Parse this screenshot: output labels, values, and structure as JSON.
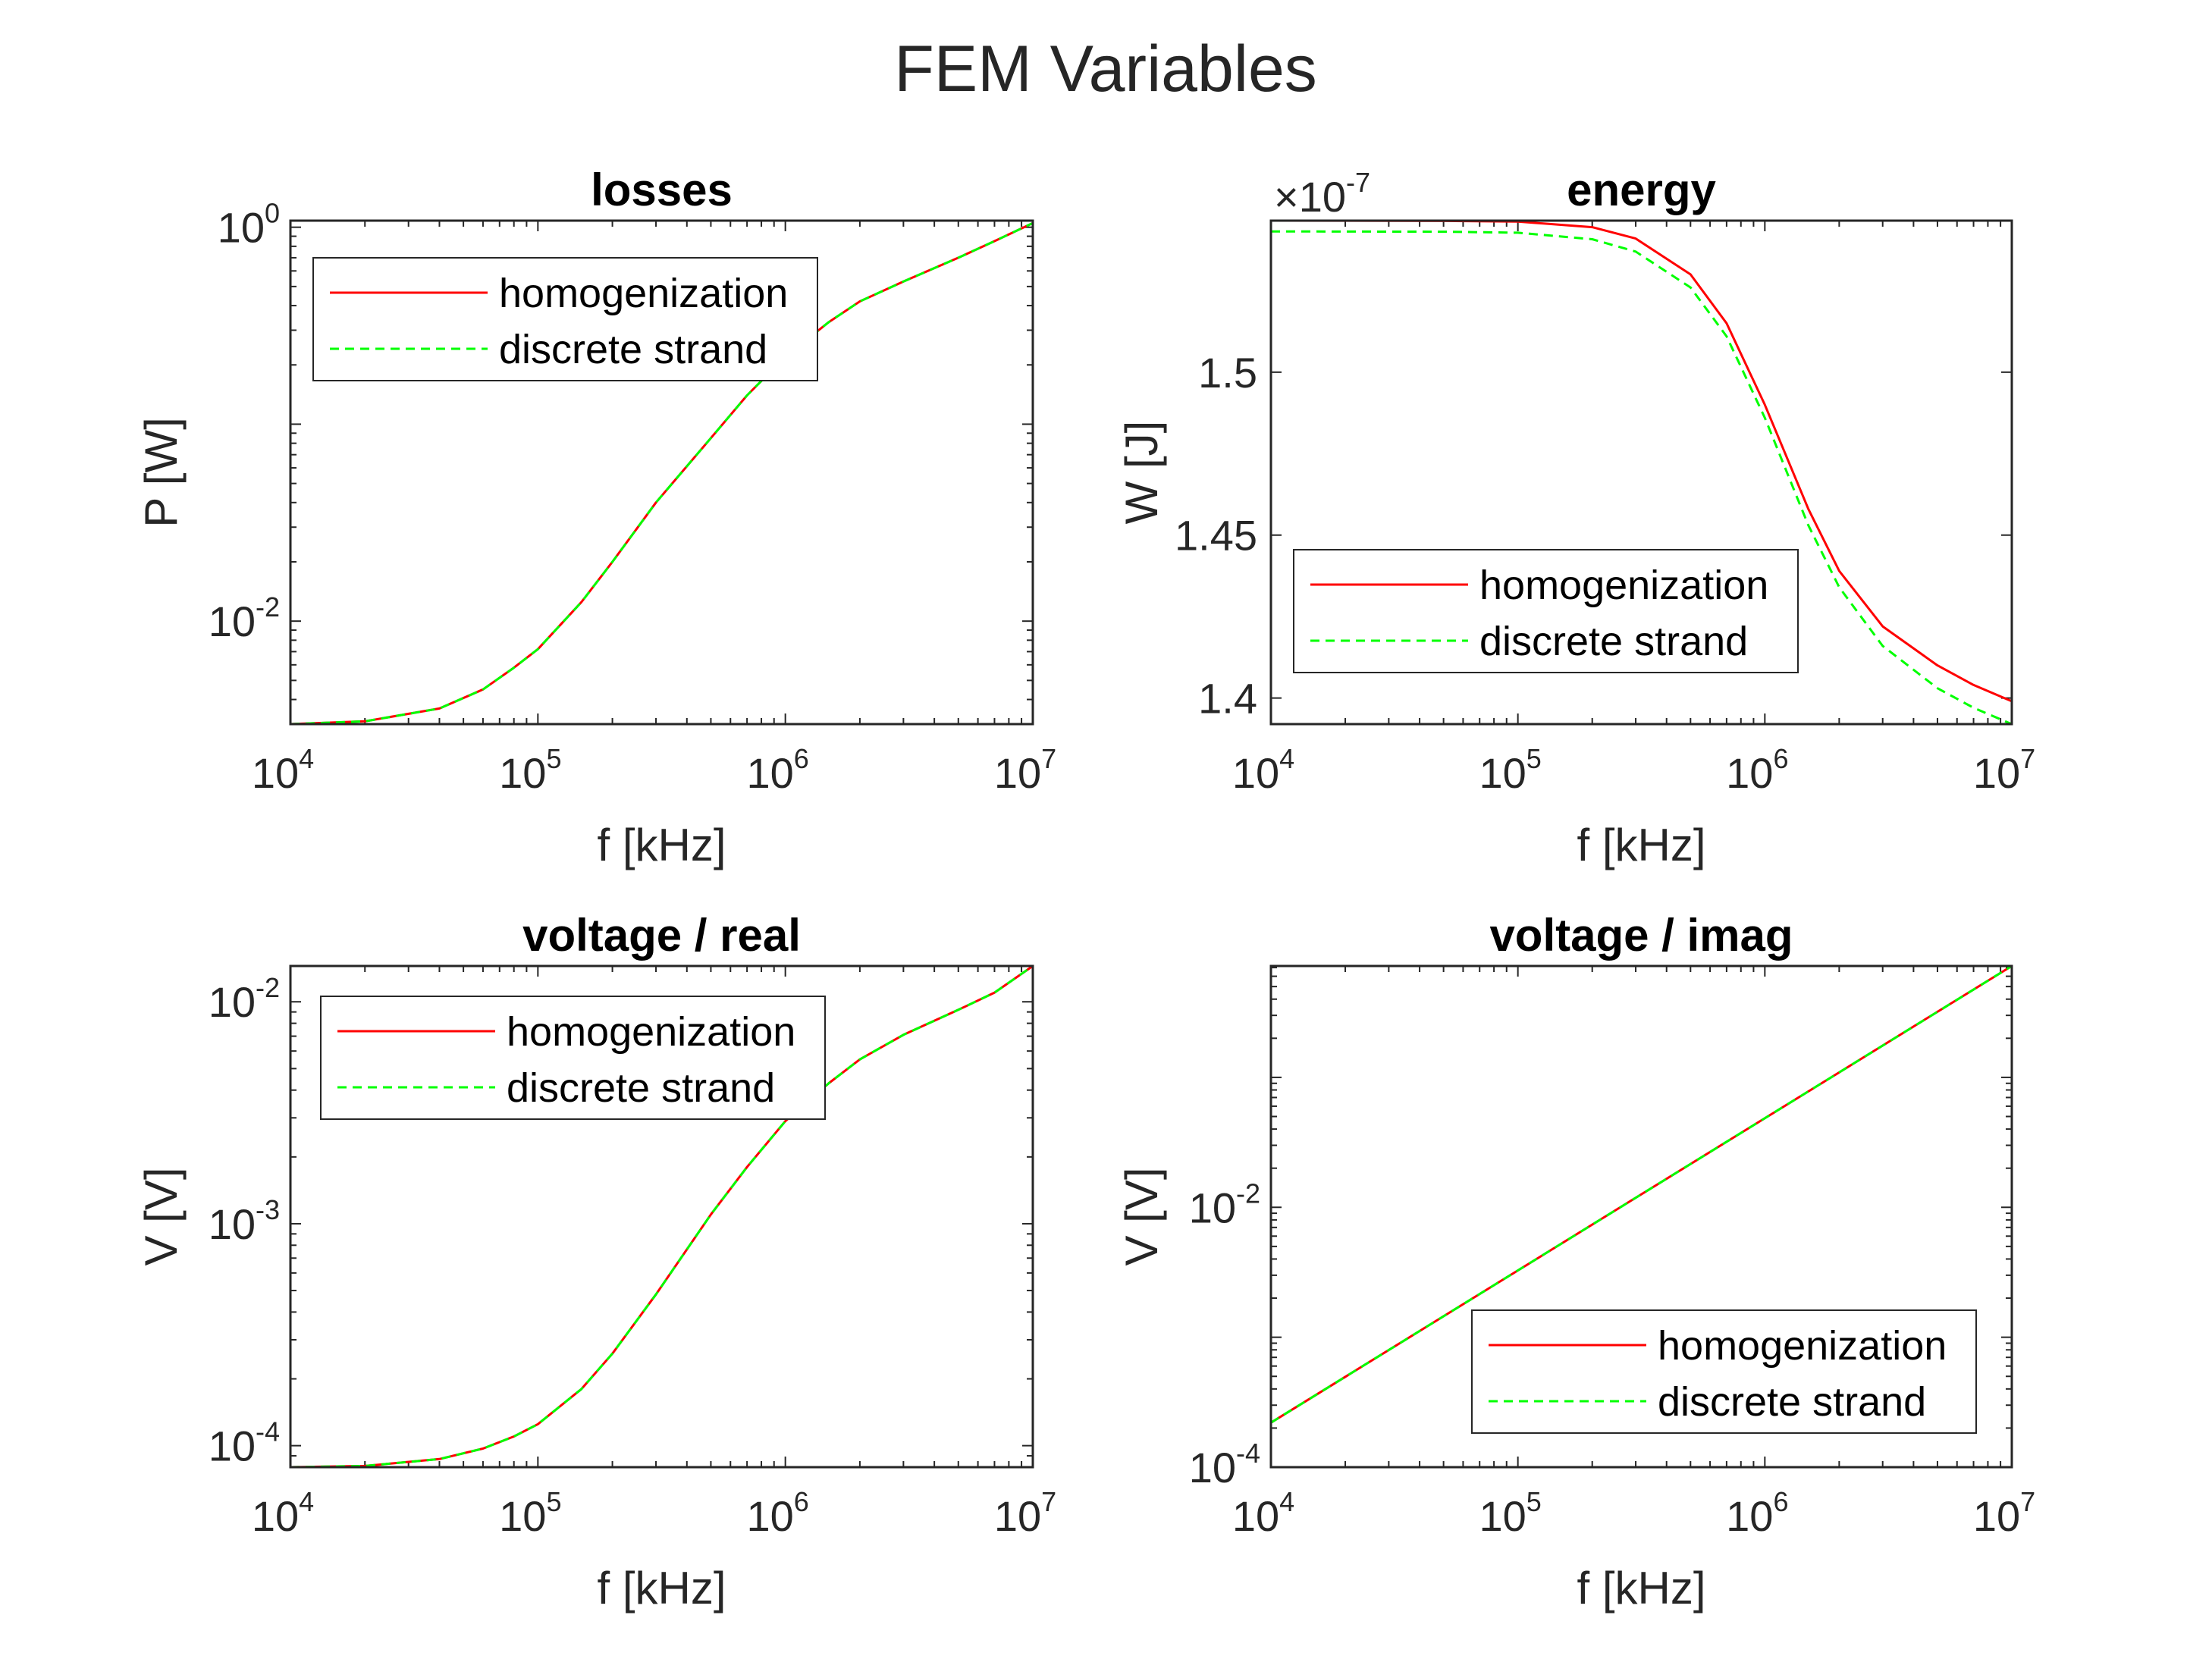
{
  "colors": {
    "homogenization": "#ff0000",
    "discrete_strand": "#00ff00",
    "axes": "#262626",
    "background": "#ffffff"
  },
  "chart_data": {
    "figure_title": "FEM Variables",
    "panels": [
      {
        "id": "losses",
        "type": "line",
        "title": "losses",
        "xlabel": "f [kHz]",
        "ylabel": "P [W]",
        "xscale": "log",
        "yscale": "log",
        "xlim": [
          10000,
          10000000
        ],
        "ylim": [
          0.003,
          1.08
        ],
        "xticks": [
          {
            "value": 10000,
            "base": "10",
            "exp": "4"
          },
          {
            "value": 100000,
            "base": "10",
            "exp": "5"
          },
          {
            "value": 1000000,
            "base": "10",
            "exp": "6"
          },
          {
            "value": 10000000,
            "base": "10",
            "exp": "7"
          }
        ],
        "yticks": [
          {
            "value": 0.01,
            "base": "10",
            "exp": "-2"
          },
          {
            "value": 1,
            "base": "10",
            "exp": "0"
          }
        ],
        "axis_exponent_label": null,
        "legend_position": "top-left",
        "grid": false,
        "series": [
          {
            "name": "homogenization",
            "style": "solid",
            "x": [
              10000,
              20000,
              40000,
              60000,
              80000,
              100000,
              150000,
              200000,
              300000,
              500000,
              700000,
              1000000,
              1500000,
              2000000,
              3000000,
              5000000,
              7000000,
              10000000
            ],
            "y": [
              0.003,
              0.0031,
              0.0036,
              0.0045,
              0.0058,
              0.0072,
              0.0125,
              0.02,
              0.04,
              0.085,
              0.14,
              0.22,
              0.33,
              0.42,
              0.53,
              0.7,
              0.85,
              1.05
            ]
          },
          {
            "name": "discrete strand",
            "style": "dashed",
            "x": [
              10000,
              20000,
              40000,
              60000,
              80000,
              100000,
              150000,
              200000,
              300000,
              500000,
              700000,
              1000000,
              1500000,
              2000000,
              3000000,
              5000000,
              7000000,
              10000000
            ],
            "y": [
              0.003,
              0.0031,
              0.0036,
              0.0045,
              0.0058,
              0.0072,
              0.0125,
              0.02,
              0.04,
              0.085,
              0.14,
              0.22,
              0.33,
              0.42,
              0.53,
              0.7,
              0.85,
              1.05
            ]
          }
        ]
      },
      {
        "id": "energy",
        "type": "line",
        "title": "energy",
        "xlabel": "f [kHz]",
        "ylabel": "W [J]",
        "xscale": "log",
        "yscale": "linear",
        "xlim": [
          10000,
          10000000
        ],
        "ylim": [
          1.392,
          1.5465
        ],
        "xticks": [
          {
            "value": 10000,
            "base": "10",
            "exp": "4"
          },
          {
            "value": 100000,
            "base": "10",
            "exp": "5"
          },
          {
            "value": 1000000,
            "base": "10",
            "exp": "6"
          },
          {
            "value": 10000000,
            "base": "10",
            "exp": "7"
          }
        ],
        "yticks": [
          {
            "value": 1.4,
            "label": "1.4"
          },
          {
            "value": 1.45,
            "label": "1.45"
          },
          {
            "value": 1.5,
            "label": "1.5"
          }
        ],
        "axis_exponent_label": {
          "prefix": "×10",
          "exp": "-7"
        },
        "legend_position": "bottom-left",
        "grid": false,
        "series": [
          {
            "name": "homogenization",
            "style": "solid",
            "x": [
              10000,
              50000,
              100000,
              200000,
              300000,
              500000,
              700000,
              1000000,
              1500000,
              2000000,
              3000000,
              5000000,
              7000000,
              10000000
            ],
            "y": [
              1.5465,
              1.5464,
              1.5462,
              1.5445,
              1.541,
              1.53,
              1.515,
              1.49,
              1.458,
              1.439,
              1.422,
              1.41,
              1.404,
              1.399
            ]
          },
          {
            "name": "discrete strand",
            "style": "dashed",
            "x": [
              10000,
              50000,
              100000,
              200000,
              300000,
              500000,
              700000,
              1000000,
              1500000,
              2000000,
              3000000,
              5000000,
              7000000,
              10000000
            ],
            "y": [
              1.5432,
              1.5431,
              1.5428,
              1.5408,
              1.537,
              1.526,
              1.511,
              1.486,
              1.453,
              1.434,
              1.416,
              1.403,
              1.397,
              1.392
            ]
          }
        ]
      },
      {
        "id": "voltage-real",
        "type": "line",
        "title": "voltage / real",
        "xlabel": "f [kHz]",
        "ylabel": "V [V]",
        "xscale": "log",
        "yscale": "log",
        "xlim": [
          10000,
          10000000
        ],
        "ylim": [
          8e-05,
          0.0145
        ],
        "xticks": [
          {
            "value": 10000,
            "base": "10",
            "exp": "4"
          },
          {
            "value": 100000,
            "base": "10",
            "exp": "5"
          },
          {
            "value": 1000000,
            "base": "10",
            "exp": "6"
          },
          {
            "value": 10000000,
            "base": "10",
            "exp": "7"
          }
        ],
        "yticks": [
          {
            "value": 0.0001,
            "base": "10",
            "exp": "-4"
          },
          {
            "value": 0.001,
            "base": "10",
            "exp": "-3"
          },
          {
            "value": 0.01,
            "base": "10",
            "exp": "-2"
          }
        ],
        "axis_exponent_label": null,
        "legend_position": "top-left",
        "grid": false,
        "series": [
          {
            "name": "homogenization",
            "style": "solid",
            "x": [
              10000,
              20000,
              40000,
              60000,
              80000,
              100000,
              150000,
              200000,
              300000,
              500000,
              700000,
              1000000,
              1500000,
              2000000,
              3000000,
              5000000,
              7000000,
              10000000
            ],
            "y": [
              8e-05,
              8.1e-05,
              8.7e-05,
              9.7e-05,
              0.00011,
              0.000125,
              0.00018,
              0.00026,
              0.00048,
              0.0011,
              0.0018,
              0.0029,
              0.0043,
              0.0055,
              0.0071,
              0.0092,
              0.011,
              0.0145
            ]
          },
          {
            "name": "discrete strand",
            "style": "dashed",
            "x": [
              10000,
              20000,
              40000,
              60000,
              80000,
              100000,
              150000,
              200000,
              300000,
              500000,
              700000,
              1000000,
              1500000,
              2000000,
              3000000,
              5000000,
              7000000,
              10000000
            ],
            "y": [
              8e-05,
              8.1e-05,
              8.7e-05,
              9.7e-05,
              0.00011,
              0.000125,
              0.00018,
              0.00026,
              0.00048,
              0.0011,
              0.0018,
              0.0029,
              0.0043,
              0.0055,
              0.0071,
              0.0092,
              0.011,
              0.0145
            ]
          }
        ]
      },
      {
        "id": "voltage-imag",
        "type": "line",
        "title": "voltage / imag",
        "xlabel": "f [kHz]",
        "ylabel": "V [V]",
        "xscale": "log",
        "yscale": "log",
        "xlim": [
          10000,
          10000000
        ],
        "ylim": [
          0.0001,
          0.72
        ],
        "xticks": [
          {
            "value": 10000,
            "base": "10",
            "exp": "4"
          },
          {
            "value": 100000,
            "base": "10",
            "exp": "5"
          },
          {
            "value": 1000000,
            "base": "10",
            "exp": "6"
          },
          {
            "value": 10000000,
            "base": "10",
            "exp": "7"
          }
        ],
        "yticks": [
          {
            "value": 0.0001,
            "base": "10",
            "exp": "-4"
          },
          {
            "value": 0.01,
            "base": "10",
            "exp": "-2"
          }
        ],
        "axis_exponent_label": null,
        "legend_position": "bottom-right",
        "grid": false,
        "series": [
          {
            "name": "homogenization",
            "style": "solid",
            "x": [
              10000,
              10000000
            ],
            "y": [
              0.00022,
              0.72
            ]
          },
          {
            "name": "discrete strand",
            "style": "dashed",
            "x": [
              10000,
              10000000
            ],
            "y": [
              0.00022,
              0.72
            ]
          }
        ]
      }
    ]
  }
}
